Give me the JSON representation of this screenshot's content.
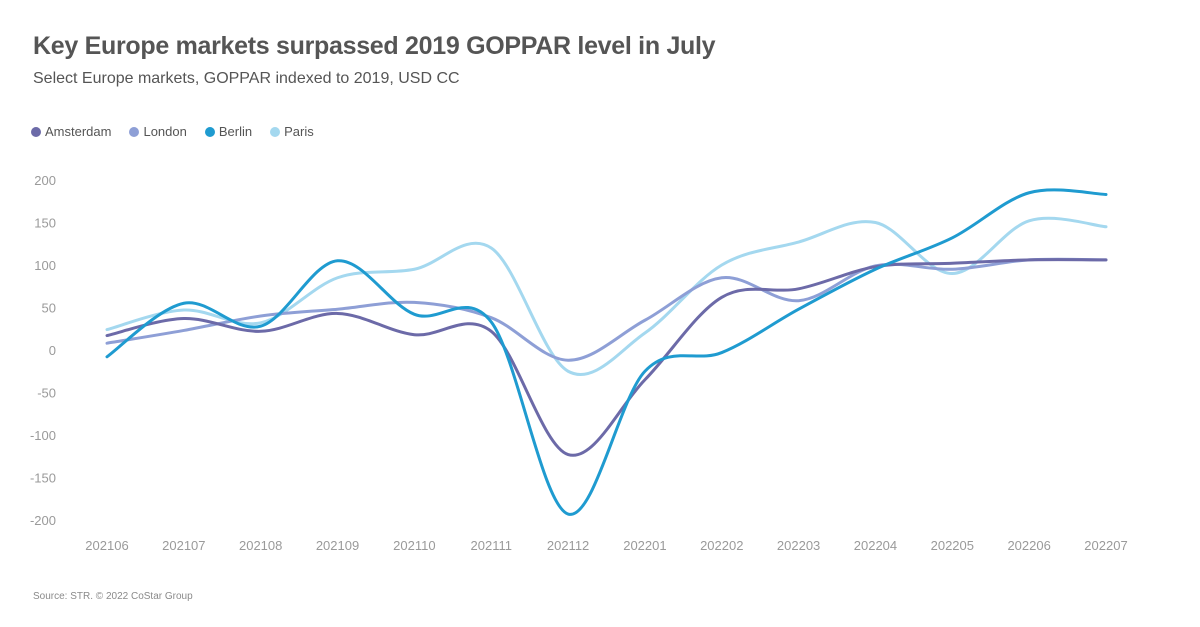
{
  "title": "Key Europe markets surpassed 2019 GOPPAR level in July",
  "subtitle": "Select Europe markets, GOPPAR indexed to 2019, USD CC",
  "source": "Source: STR. © 2022 CoStar Group",
  "chart_data": {
    "type": "line",
    "title": "Key Europe markets surpassed 2019 GOPPAR level in July",
    "subtitle": "Select Europe markets, GOPPAR indexed to 2019, USD CC",
    "xlabel": "",
    "ylabel": "",
    "ylim": [
      -200,
      200
    ],
    "yticks": [
      "200",
      "150",
      "100",
      "50",
      "0",
      "-50",
      "-100",
      "-150",
      "-200"
    ],
    "ytick_values": [
      200,
      150,
      100,
      50,
      0,
      -50,
      -100,
      -150,
      -200
    ],
    "grid": false,
    "legend_position": "top-left",
    "categories": [
      "202106",
      "202107",
      "202108",
      "202109",
      "202110",
      "202111",
      "202112",
      "202201",
      "202202",
      "202203",
      "202204",
      "202205",
      "202206",
      "202207"
    ],
    "series": [
      {
        "name": "Amsterdam",
        "color": "#6c6aa8",
        "values": [
          17,
          37,
          22,
          43,
          18,
          22,
          -123,
          -35,
          62,
          72,
          98,
          102,
          106,
          106
        ]
      },
      {
        "name": "London",
        "color": "#8e9fd6",
        "values": [
          8,
          23,
          40,
          48,
          56,
          38,
          -12,
          35,
          85,
          58,
          99,
          95,
          106,
          106
        ]
      },
      {
        "name": "Berlin",
        "color": "#1f9bd0",
        "values": [
          -8,
          55,
          28,
          105,
          42,
          33,
          -193,
          -25,
          -3,
          48,
          95,
          132,
          185,
          183
        ]
      },
      {
        "name": "Paris",
        "color": "#a4d8ef",
        "values": [
          24,
          47,
          32,
          85,
          95,
          120,
          -25,
          20,
          100,
          127,
          150,
          90,
          152,
          145
        ]
      }
    ]
  }
}
